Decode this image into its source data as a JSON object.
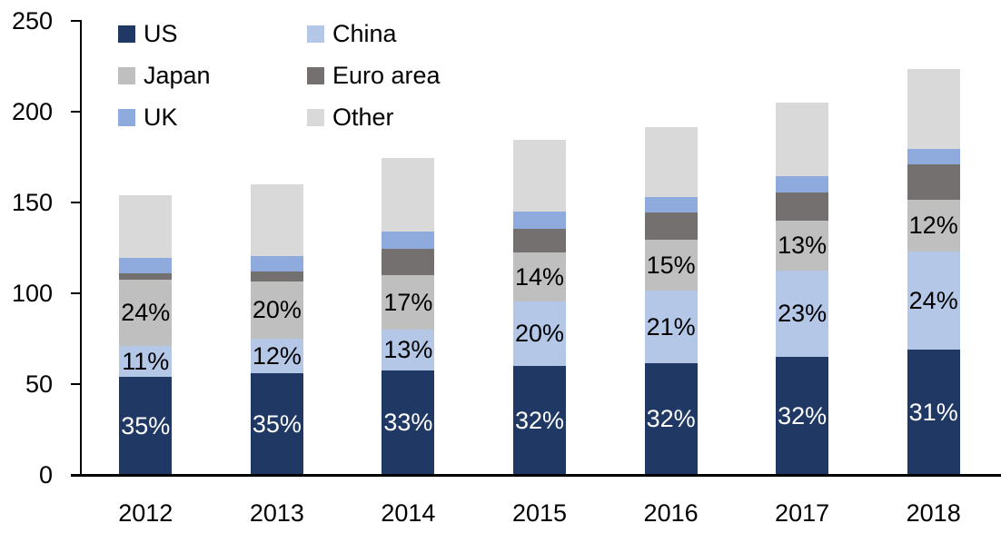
{
  "chart_data": {
    "type": "bar",
    "stacked": true,
    "title": "",
    "xlabel": "",
    "ylabel": "",
    "categories": [
      "2012",
      "2013",
      "2014",
      "2015",
      "2016",
      "2017",
      "2018"
    ],
    "series": [
      {
        "name": "US",
        "color": "#1f3864",
        "label_color": "#ffffff",
        "values": [
          54,
          56,
          57.5,
          60,
          61.5,
          65,
          69
        ],
        "labels": [
          "35%",
          "35%",
          "33%",
          "32%",
          "32%",
          "32%",
          "31%"
        ]
      },
      {
        "name": "China",
        "color": "#b4c7e7",
        "label_color": "#000000",
        "values": [
          17,
          19,
          22.5,
          35.5,
          40,
          47.5,
          54
        ],
        "labels": [
          "11%",
          "12%",
          "13%",
          "20%",
          "21%",
          "23%",
          "24%"
        ]
      },
      {
        "name": "Japan",
        "color": "#bfbfbf",
        "label_color": "#000000",
        "values": [
          36.5,
          31.5,
          30,
          27,
          28,
          27.5,
          28.5
        ],
        "labels": [
          "24%",
          "20%",
          "17%",
          "14%",
          "15%",
          "13%",
          "12%"
        ]
      },
      {
        "name": "Euro area",
        "color": "#747070",
        "values": [
          3.5,
          5.5,
          14.5,
          13,
          15,
          15.5,
          19.5
        ]
      },
      {
        "name": "UK",
        "color": "#8faadc",
        "values": [
          8.5,
          8.5,
          9.5,
          9.5,
          8.5,
          9,
          8.5
        ]
      },
      {
        "name": "Other",
        "color": "#d9d9d9",
        "values": [
          34.5,
          39.5,
          40.5,
          39.5,
          38.5,
          40.5,
          44
        ]
      }
    ],
    "totals_approx": [
      154,
      160,
      174.5,
      184.5,
      191.5,
      205,
      223.5
    ],
    "ylim": [
      0,
      250
    ],
    "ytick_step": 50,
    "yticks": [
      "0",
      "50",
      "100",
      "150",
      "200",
      "250"
    ],
    "grid": false,
    "legend_position": "top-left",
    "legend_columns": 2,
    "legend_order": [
      "US",
      "China",
      "Japan",
      "Euro area",
      "UK",
      "Other"
    ],
    "axis_color": "#000000",
    "text_color": "#000000"
  }
}
